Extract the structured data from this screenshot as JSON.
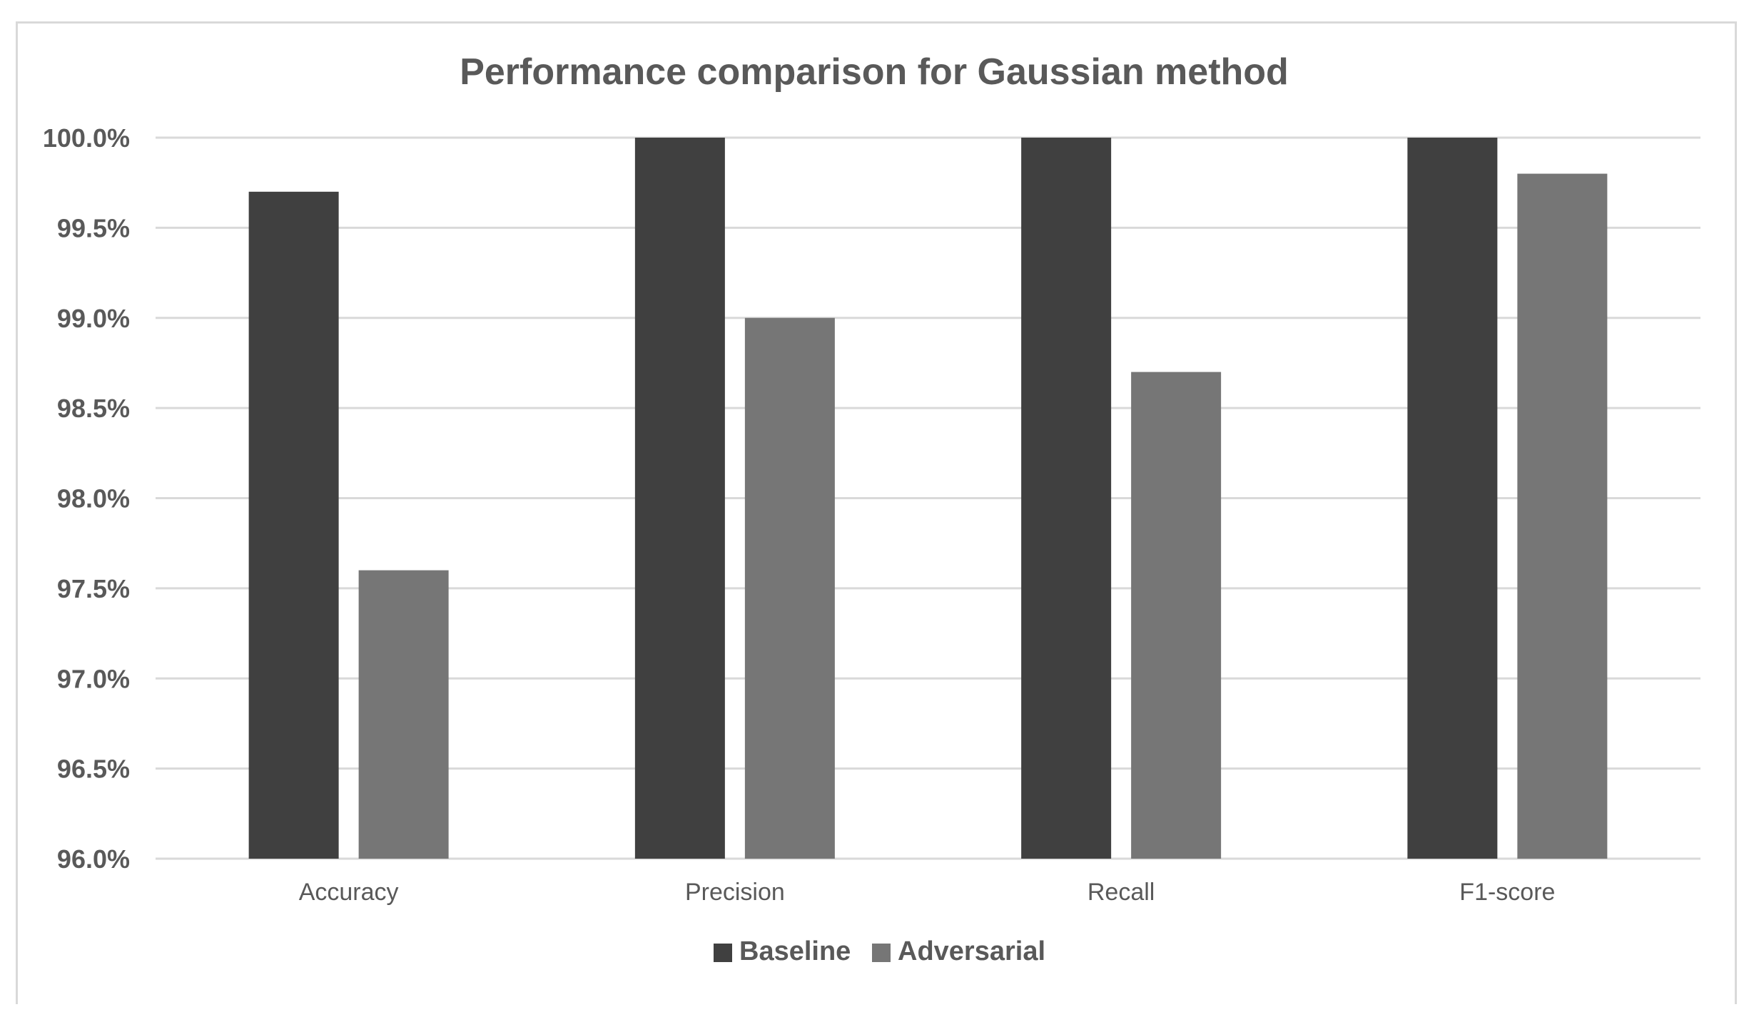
{
  "chart_data": {
    "type": "bar",
    "title": "Performance comparison for Gaussian method",
    "xlabel": "",
    "ylabel": "",
    "categories": [
      "Accuracy",
      "Precision",
      "Recall",
      "F1-score"
    ],
    "series": [
      {
        "name": "Baseline",
        "values": [
          99.7,
          100.0,
          100.0,
          100.0
        ],
        "color": "#404040"
      },
      {
        "name": "Adversarial",
        "values": [
          97.6,
          99.0,
          98.7,
          99.8
        ],
        "color": "#767676"
      }
    ],
    "ylim": [
      96.0,
      100.0
    ],
    "yticks": [
      96.0,
      96.5,
      97.0,
      97.5,
      98.0,
      98.5,
      99.0,
      99.5,
      100.0
    ],
    "ytick_labels": [
      "96.0%",
      "96.5%",
      "97.0%",
      "97.5%",
      "98.0%",
      "98.5%",
      "99.0%",
      "99.5%",
      "100.0%"
    ],
    "grid": true,
    "legend_position": "bottom",
    "gridline_color": "#d9d9d9"
  }
}
